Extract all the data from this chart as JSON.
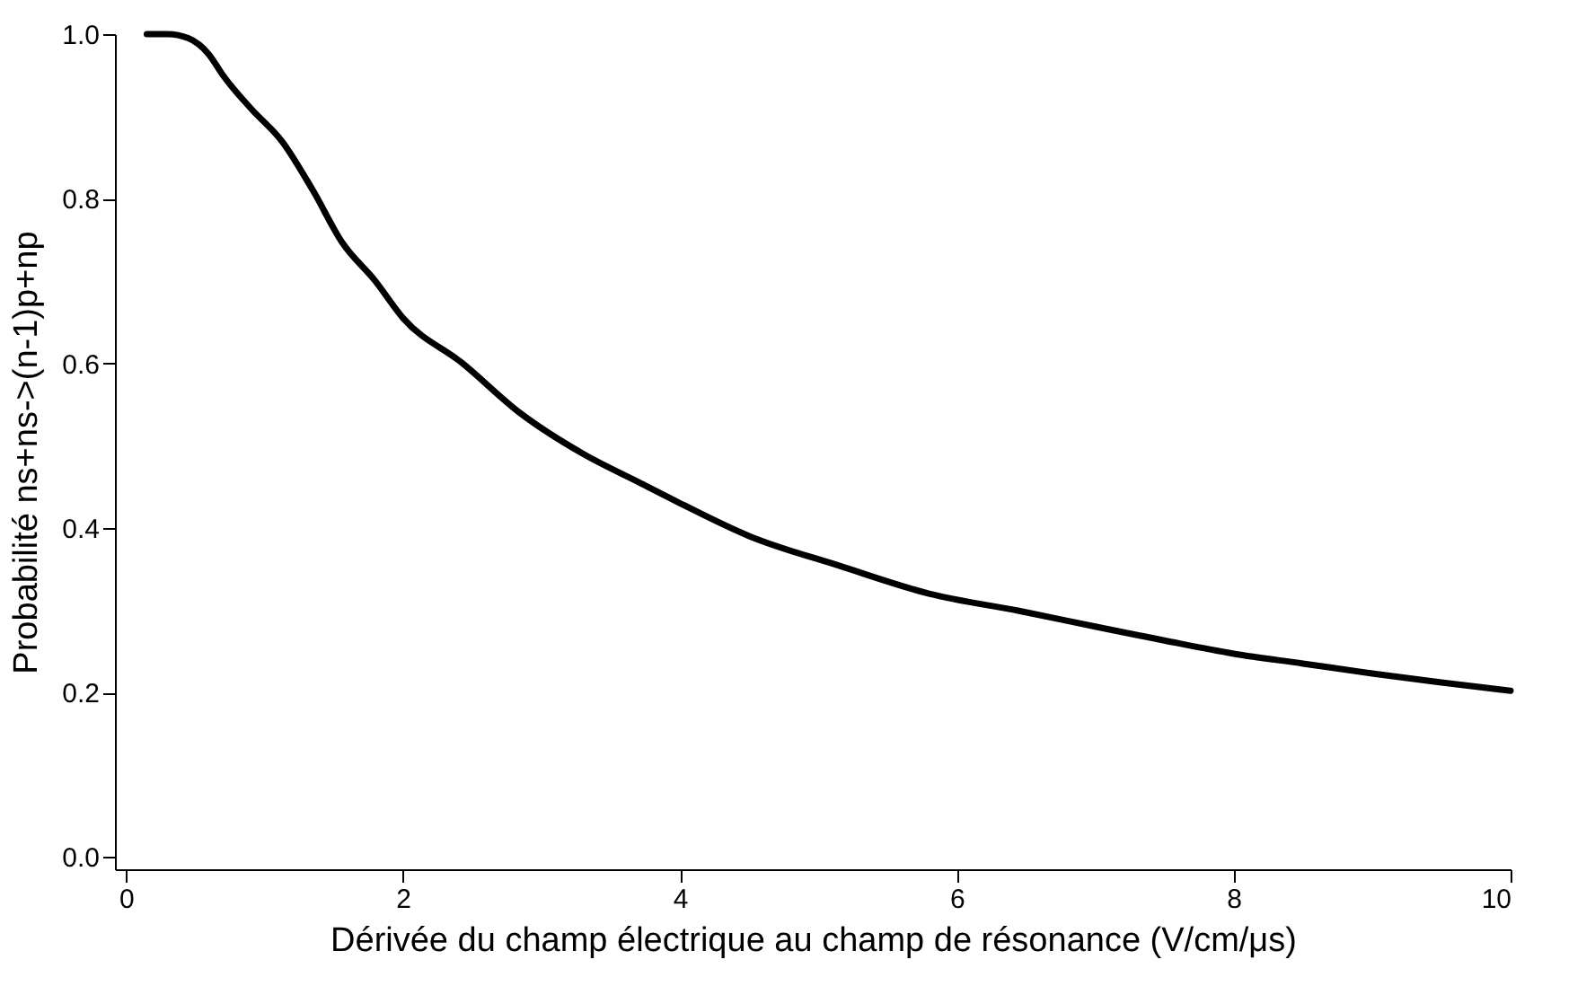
{
  "chart_data": {
    "type": "line",
    "xlabel": "Dérivée du champ électrique au champ de résonance (V/cm/μs)",
    "ylabel": "Probabilité ns+ns->(n-1)p+np",
    "x": [
      0.15,
      0.3,
      0.45,
      0.6,
      0.7,
      0.9,
      1.13,
      1.35,
      1.56,
      1.8,
      2.0,
      2.43,
      2.85,
      3.3,
      3.72,
      4.0,
      4.5,
      5.15,
      5.8,
      6.45,
      7.0,
      7.5,
      8.0,
      8.5,
      9.0,
      9.5,
      10
    ],
    "series": [
      {
        "color": "#000000",
        "values": [
          1.0,
          1.0,
          0.995,
          0.975,
          0.95,
          0.91,
          0.869,
          0.81,
          0.747,
          0.7,
          0.655,
          0.6,
          0.539,
          0.49,
          0.454,
          0.43,
          0.39,
          0.354,
          0.32,
          0.299,
          0.28,
          0.263,
          0.247,
          0.235,
          0.223,
          0.212,
          0.202
        ]
      }
    ],
    "xlim": [
      -0.08,
      10
    ],
    "ylim": [
      -0.015,
      1.0
    ],
    "xticks": [
      0,
      2,
      4,
      6,
      8,
      10
    ],
    "yticks": [
      {
        "value": 0,
        "label": "0.0"
      },
      0.2,
      0.4,
      0.6,
      0.8,
      {
        "value": 1,
        "label": "1.0"
      }
    ],
    "grid": false,
    "marker": "none",
    "line_style": "solid"
  }
}
